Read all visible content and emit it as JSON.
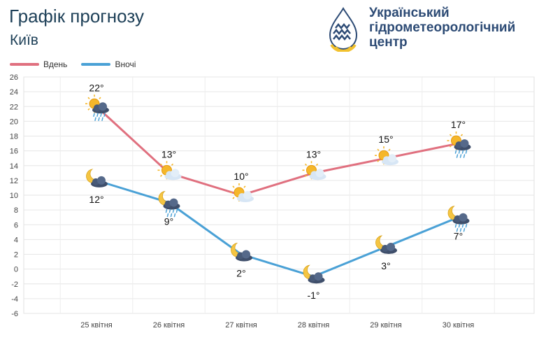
{
  "header": {
    "title": "Графік прогнозу",
    "city": "Київ"
  },
  "logo": {
    "line1": "Український",
    "line2": "гідрометеорологічний",
    "line3": "центр",
    "icon": "water-drop-sun-icon",
    "colors": {
      "blue": "#2d4b75",
      "yellow": "#f2c12e"
    }
  },
  "legend": [
    {
      "name": "Вдень",
      "color": "#e0707f"
    },
    {
      "name": "Вночі",
      "color": "#4aa1d6"
    }
  ],
  "chart_data": {
    "type": "line",
    "categories": [
      "25 квітня",
      "26 квітня",
      "27 квітня",
      "28 квітня",
      "29 квітня",
      "30 квітня"
    ],
    "ylim": [
      -6,
      26
    ],
    "yticks": [
      -6,
      -4,
      -2,
      0,
      2,
      4,
      6,
      8,
      10,
      12,
      14,
      16,
      18,
      20,
      22,
      24,
      26
    ],
    "grid": true,
    "legend_position": "top-left",
    "series": [
      {
        "name": "Вдень",
        "color": "#e0707f",
        "values": [
          22,
          13,
          10,
          13,
          15,
          17
        ],
        "labels": [
          "22°",
          "13°",
          "10°",
          "13°",
          "15°",
          "17°"
        ],
        "icons": [
          "sun-cloud-rain-icon",
          "sun-cloud-icon",
          "sun-cloud-icon",
          "sun-cloud-icon",
          "sun-cloud-icon",
          "sun-cloud-rain-icon"
        ]
      },
      {
        "name": "Вночі",
        "color": "#4aa1d6",
        "values": [
          12,
          9,
          2,
          -1,
          3,
          7
        ],
        "labels": [
          "12°",
          "9°",
          "2°",
          "-1°",
          "3°",
          "7°"
        ],
        "icons": [
          "moon-cloud-icon",
          "moon-cloud-rain-icon",
          "moon-cloud-icon",
          "moon-cloud-icon",
          "moon-cloud-icon",
          "moon-cloud-rain-icon"
        ]
      }
    ]
  }
}
